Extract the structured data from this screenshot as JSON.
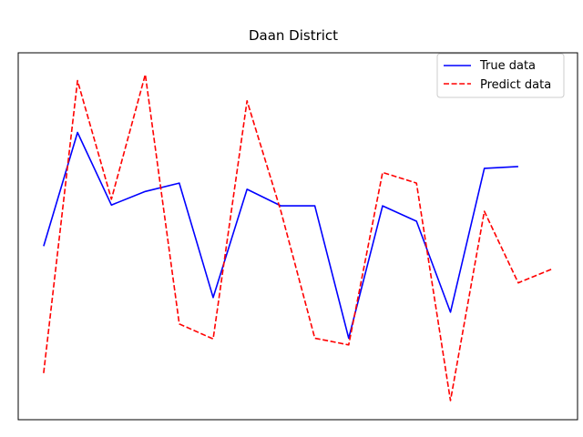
{
  "chart_data": {
    "type": "line",
    "title": "Daan District",
    "xlabel": "",
    "ylabel": "",
    "x": [
      0,
      1,
      2,
      3,
      4,
      5,
      6,
      7,
      8,
      9,
      10,
      11,
      12,
      13,
      14,
      15
    ],
    "xlim": [
      -0.75,
      15.75
    ],
    "ylim": [
      0,
      100
    ],
    "grid": false,
    "show_ticks": false,
    "legend": "upper-right",
    "series": [
      {
        "name": "True data",
        "color": "#0000ff",
        "style": "solid",
        "values": [
          47.3,
          78.3,
          58.5,
          62.2,
          64.5,
          33.3,
          62.8,
          58.3,
          58.3,
          22.2,
          58.3,
          54.1,
          29.3,
          68.5,
          69.0,
          null
        ]
      },
      {
        "name": "Predict data",
        "color": "#ff0000",
        "style": "dashed",
        "values": [
          12.7,
          92.4,
          60.1,
          94.1,
          26.1,
          22.0,
          86.9,
          56.8,
          22.2,
          20.4,
          67.4,
          64.5,
          5.2,
          56.8,
          37.3,
          41.1
        ]
      }
    ]
  }
}
